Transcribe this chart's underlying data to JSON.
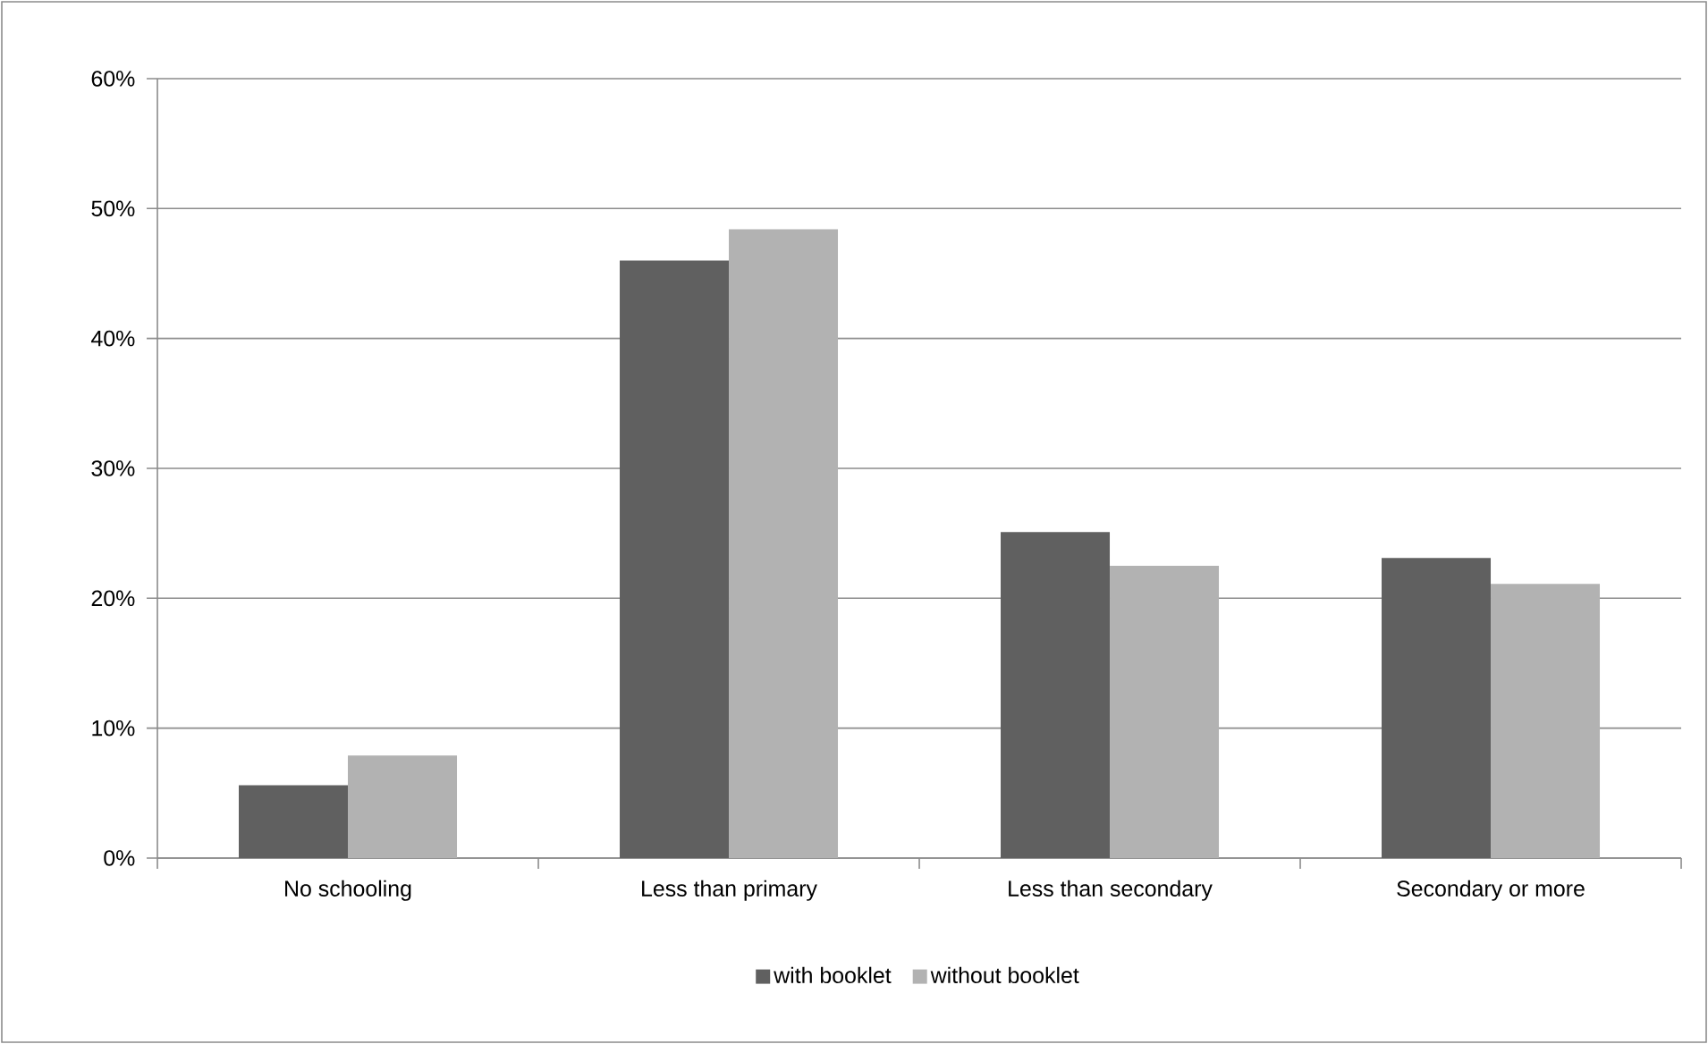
{
  "chart_data": {
    "type": "bar",
    "categories": [
      "No schooling",
      "Less than primary",
      "Less than secondary",
      "Secondary or more"
    ],
    "series": [
      {
        "name": "with booklet",
        "color": "#606060",
        "values": [
          5.6,
          46.0,
          25.1,
          23.1
        ]
      },
      {
        "name": "without booklet",
        "color": "#b2b2b2",
        "values": [
          7.9,
          48.4,
          22.5,
          21.1
        ]
      }
    ],
    "ylim": [
      0,
      60
    ],
    "yticks": [
      {
        "value": 0,
        "label": "0%"
      },
      {
        "value": 10,
        "label": "10%"
      },
      {
        "value": 20,
        "label": "20%"
      },
      {
        "value": 30,
        "label": "30%"
      },
      {
        "value": 40,
        "label": "40%"
      },
      {
        "value": 50,
        "label": "50%"
      },
      {
        "value": 60,
        "label": "60%"
      }
    ],
    "grid": "y",
    "legend": "bottom"
  }
}
